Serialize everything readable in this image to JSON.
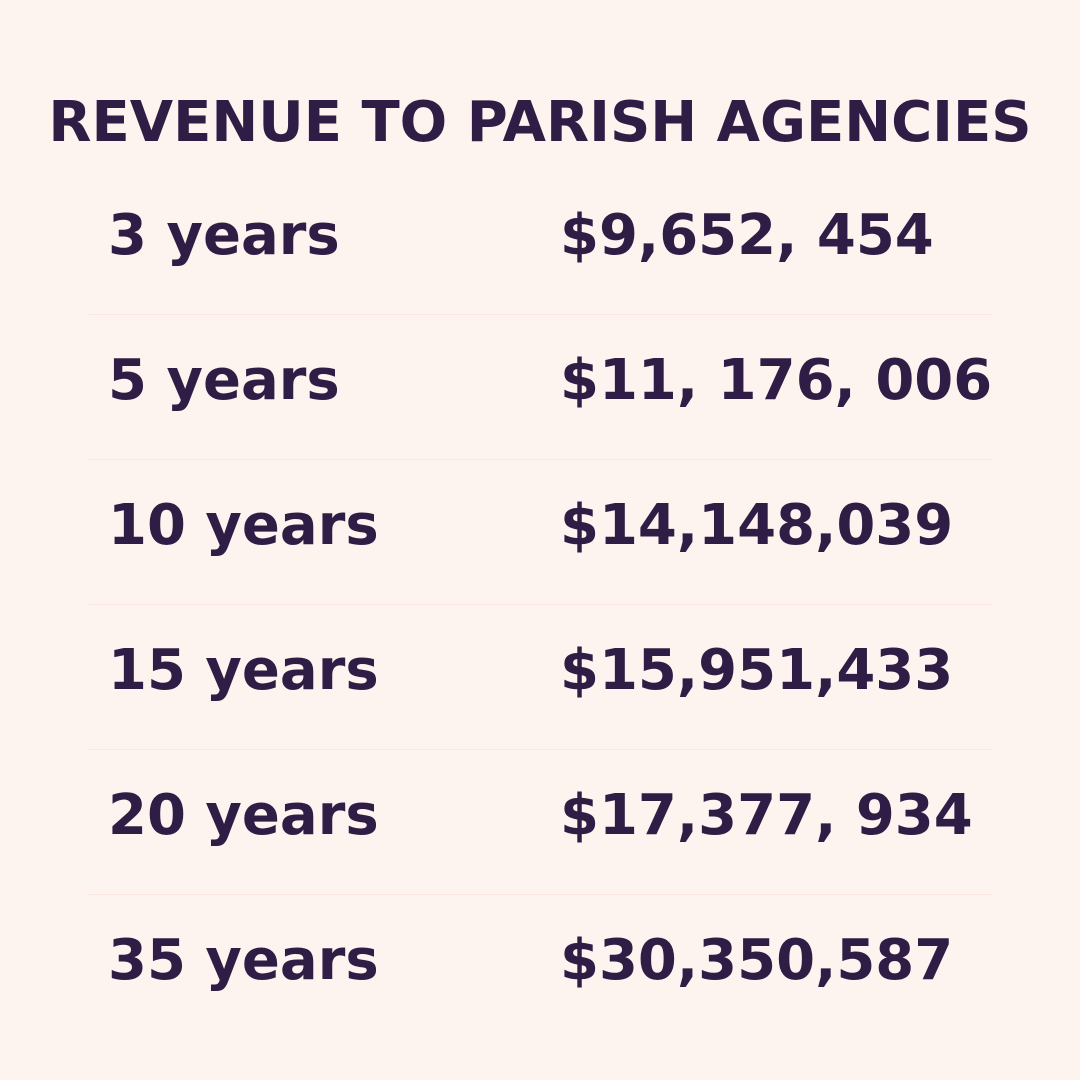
{
  "title": "REVENUE TO PARISH AGENCIES",
  "rows": [
    {
      "period": "3 years",
      "amount": "$9,652, 454"
    },
    {
      "period": "5 years",
      "amount": "$11, 176, 006"
    },
    {
      "period": "10 years",
      "amount": "$14,148,039"
    },
    {
      "period": "15 years",
      "amount": "$15,951,433"
    },
    {
      "period": "20 years",
      "amount": "$17,377, 934"
    },
    {
      "period": "35 years",
      "amount": "$30,350,587"
    }
  ],
  "colors": {
    "background": "#fdf3ef",
    "text": "#2f1d45",
    "divider": "#fbe6e0"
  }
}
